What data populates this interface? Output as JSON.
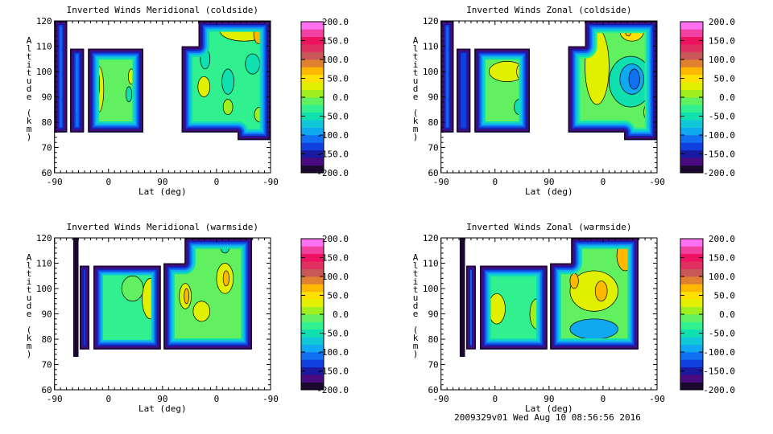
{
  "colorbar": {
    "min": -200,
    "max": 200,
    "step": 20,
    "colors": [
      "#1a0830",
      "#4a0a80",
      "#1a1aa0",
      "#1040e0",
      "#1070f0",
      "#10a8f0",
      "#10c8d8",
      "#10e0b0",
      "#30f090",
      "#60f060",
      "#a0f020",
      "#e0f000",
      "#ffe000",
      "#ffb800",
      "#e08030",
      "#c85858",
      "#e03060",
      "#f01060",
      "#f040a0",
      "#ff70f0"
    ],
    "tick_labels": [
      "200.0",
      "150.0",
      "100.0",
      "50.0",
      "0.0",
      "-50.0",
      "-100.0",
      "-150.0",
      "-200.0"
    ],
    "tick_values": [
      200,
      150,
      100,
      50,
      0,
      -50,
      -100,
      -150,
      -200
    ]
  },
  "footer": "2009329v01 Wed Aug 10 08:56:56 2016",
  "chart_data": [
    {
      "type": "heatmap",
      "title": "Inverted Winds Meridional (coldside)",
      "xlabel": "Lat (deg)",
      "ylabel": "Altitude (km)",
      "xtick_labels": [
        "-90",
        "0",
        "90",
        "0",
        "-90"
      ],
      "xtick_positions": [
        0,
        90,
        180,
        270,
        360
      ],
      "xrange": [
        0,
        360
      ],
      "ytick_labels": [
        "120",
        "110",
        "100",
        "90",
        "80",
        "70",
        "60"
      ],
      "ytick_values": [
        120,
        110,
        100,
        90,
        80,
        70,
        60
      ],
      "ylim": [
        60,
        120
      ],
      "regions": [
        {
          "value": -30,
          "outline": [
            [
              0,
              76
            ],
            [
              21,
              76
            ],
            [
              21,
              120
            ],
            [
              0,
              120
            ]
          ]
        },
        {
          "value": -80,
          "outline": [
            [
              26,
              76
            ],
            [
              49,
              76
            ],
            [
              49,
              109
            ],
            [
              26,
              109
            ]
          ]
        },
        {
          "value": -20,
          "outline": [
            [
              56,
              76
            ],
            [
              148,
              76
            ],
            [
              148,
              109
            ],
            [
              56,
              109
            ]
          ]
        },
        {
          "value": -30,
          "outline": [
            [
              212,
              76
            ],
            [
              305,
              76
            ],
            [
              305,
              73
            ],
            [
              360,
              73
            ],
            [
              360,
              120
            ],
            [
              240,
              120
            ],
            [
              240,
              110
            ],
            [
              212,
              110
            ]
          ]
        }
      ],
      "blobs": [
        {
          "u": 14,
          "alt": 98,
          "ru": 2,
          "ralt": 22,
          "value": -195
        },
        {
          "u": 37,
          "alt": 92,
          "ru": 2,
          "ralt": 10,
          "value": 10
        },
        {
          "u": 60,
          "alt": 92,
          "ru": 3,
          "ralt": 14,
          "value": -195
        },
        {
          "u": 74,
          "alt": 93,
          "ru": 8,
          "ralt": 9,
          "value": 30
        },
        {
          "u": 72,
          "alt": 95,
          "ru": 3,
          "ralt": 5,
          "value": 55
        },
        {
          "u": 128,
          "alt": 98,
          "ru": 5,
          "ralt": 3,
          "value": 20
        },
        {
          "u": 124,
          "alt": 91,
          "ru": 5,
          "ralt": 3,
          "value": -50
        },
        {
          "u": 316,
          "alt": 116,
          "ru": 40,
          "ralt": 4,
          "value": 30
        },
        {
          "u": 340,
          "alt": 115,
          "ru": 8,
          "ralt": 4,
          "value": 60
        },
        {
          "u": 251,
          "alt": 105,
          "ru": 8,
          "ralt": 4,
          "value": -60
        },
        {
          "u": 330,
          "alt": 103,
          "ru": 12,
          "ralt": 4,
          "value": -50
        },
        {
          "u": 249,
          "alt": 94,
          "ru": 10,
          "ralt": 4,
          "value": 30
        },
        {
          "u": 289,
          "alt": 96,
          "ru": 10,
          "ralt": 5,
          "value": -50
        },
        {
          "u": 218,
          "alt": 88,
          "ru": 3,
          "ralt": 5,
          "value": 80
        },
        {
          "u": 289,
          "alt": 86,
          "ru": 8,
          "ralt": 3,
          "value": 10
        },
        {
          "u": 343,
          "alt": 83,
          "ru": 10,
          "ralt": 3,
          "value": 10
        }
      ]
    },
    {
      "type": "heatmap",
      "title": "Inverted Winds Zonal (coldside)",
      "xlabel": "Lat (deg)",
      "ylabel": "Altitude (km)",
      "xtick_labels": [
        "-90",
        "0",
        "90",
        "0",
        "-90"
      ],
      "xtick_positions": [
        0,
        90,
        180,
        270,
        360
      ],
      "xrange": [
        0,
        360
      ],
      "ytick_labels": [
        "120",
        "110",
        "100",
        "90",
        "80",
        "70",
        "60"
      ],
      "ytick_values": [
        120,
        110,
        100,
        90,
        80,
        70,
        60
      ],
      "ylim": [
        60,
        120
      ],
      "regions": [
        {
          "value": -30,
          "outline": [
            [
              0,
              76
            ],
            [
              21,
              76
            ],
            [
              21,
              120
            ],
            [
              0,
              120
            ]
          ]
        },
        {
          "value": -130,
          "outline": [
            [
              26,
              76
            ],
            [
              49,
              76
            ],
            [
              49,
              109
            ],
            [
              26,
              109
            ]
          ]
        },
        {
          "value": -20,
          "outline": [
            [
              56,
              76
            ],
            [
              148,
              76
            ],
            [
              148,
              109
            ],
            [
              56,
              109
            ]
          ]
        },
        {
          "value": -10,
          "outline": [
            [
              212,
              76
            ],
            [
              305,
              76
            ],
            [
              305,
              73
            ],
            [
              360,
              73
            ],
            [
              360,
              120
            ],
            [
              240,
              120
            ],
            [
              240,
              110
            ],
            [
              212,
              110
            ]
          ]
        }
      ],
      "blobs": [
        {
          "u": 14,
          "alt": 98,
          "ru": 2,
          "ralt": 22,
          "value": -195
        },
        {
          "u": 60,
          "alt": 92,
          "ru": 3,
          "ralt": 14,
          "value": -195
        },
        {
          "u": 110,
          "alt": 100,
          "ru": 30,
          "ralt": 4,
          "value": 25
        },
        {
          "u": 133,
          "alt": 100,
          "ru": 7,
          "ralt": 3,
          "value": 55
        },
        {
          "u": 130,
          "alt": 86,
          "ru": 8,
          "ralt": 3,
          "value": -50
        },
        {
          "u": 260,
          "alt": 102,
          "ru": 20,
          "ralt": 15,
          "value": 20
        },
        {
          "u": 318,
          "alt": 116,
          "ru": 20,
          "ralt": 4,
          "value": 45
        },
        {
          "u": 312,
          "alt": 117,
          "ru": 6,
          "ralt": 3,
          "value": 70
        },
        {
          "u": 316,
          "alt": 96,
          "ru": 36,
          "ralt": 10,
          "value": -50
        },
        {
          "u": 318,
          "alt": 97,
          "ru": 20,
          "ralt": 6,
          "value": -90
        },
        {
          "u": 322,
          "alt": 97,
          "ru": 9,
          "ralt": 4,
          "value": -110
        },
        {
          "u": 348,
          "alt": 84,
          "ru": 10,
          "ralt": 4,
          "value": 25
        }
      ]
    },
    {
      "type": "heatmap",
      "title": "Inverted Winds Meridional (warmside)",
      "xlabel": "Lat (deg)",
      "ylabel": "Altitude (km)",
      "xtick_labels": [
        "-90",
        "0",
        "90",
        "0",
        "-90"
      ],
      "xtick_positions": [
        0,
        90,
        180,
        270,
        360
      ],
      "xrange": [
        0,
        360
      ],
      "ytick_labels": [
        "120",
        "110",
        "100",
        "90",
        "80",
        "70",
        "60"
      ],
      "ytick_values": [
        120,
        110,
        100,
        90,
        80,
        70,
        60
      ],
      "ylim": [
        60,
        120
      ],
      "regions": [
        {
          "value": -195,
          "outline": [
            [
              31,
              73
            ],
            [
              40,
              73
            ],
            [
              40,
              120
            ],
            [
              31,
              120
            ]
          ]
        },
        {
          "value": -80,
          "outline": [
            [
              42,
              76
            ],
            [
              58,
              76
            ],
            [
              58,
              109
            ],
            [
              42,
              109
            ]
          ]
        },
        {
          "value": -40,
          "outline": [
            [
              65,
              76
            ],
            [
              177,
              76
            ],
            [
              177,
              109
            ],
            [
              65,
              109
            ]
          ]
        },
        {
          "value": -20,
          "outline": [
            [
              182,
              76
            ],
            [
              329,
              76
            ],
            [
              329,
              120
            ],
            [
              217,
              120
            ],
            [
              217,
              110
            ],
            [
              182,
              110
            ]
          ]
        }
      ],
      "blobs": [
        {
          "u": 160,
          "alt": 96,
          "ru": 14,
          "ralt": 8,
          "value": 30
        },
        {
          "u": 130,
          "alt": 100,
          "ru": 18,
          "ralt": 5,
          "value": -10
        },
        {
          "u": 218,
          "alt": 97,
          "ru": 10,
          "ralt": 5,
          "value": 30
        },
        {
          "u": 220,
          "alt": 97,
          "ru": 4,
          "ralt": 3,
          "value": 60
        },
        {
          "u": 284,
          "alt": 104,
          "ru": 14,
          "ralt": 6,
          "value": 30
        },
        {
          "u": 286,
          "alt": 104,
          "ru": 5,
          "ralt": 3,
          "value": 70
        },
        {
          "u": 245,
          "alt": 91,
          "ru": 14,
          "ralt": 4,
          "value": 30
        },
        {
          "u": 322,
          "alt": 112,
          "ru": 6,
          "ralt": 8,
          "value": 60
        },
        {
          "u": 284,
          "alt": 117,
          "ru": 8,
          "ralt": 3,
          "value": -60
        }
      ]
    },
    {
      "type": "heatmap",
      "title": "Inverted Winds Zonal (warmside)",
      "xlabel": "Lat (deg)",
      "ylabel": "Altitude (km)",
      "xtick_labels": [
        "-90",
        "0",
        "90",
        "0",
        "-90"
      ],
      "xtick_positions": [
        0,
        90,
        180,
        270,
        360
      ],
      "xrange": [
        0,
        360
      ],
      "ytick_labels": [
        "120",
        "110",
        "100",
        "90",
        "80",
        "70",
        "60"
      ],
      "ytick_values": [
        120,
        110,
        100,
        90,
        80,
        70,
        60
      ],
      "ylim": [
        60,
        120
      ],
      "regions": [
        {
          "value": -195,
          "outline": [
            [
              31,
              73
            ],
            [
              40,
              73
            ],
            [
              40,
              120
            ],
            [
              31,
              120
            ]
          ]
        },
        {
          "value": -120,
          "outline": [
            [
              42,
              76
            ],
            [
              58,
              76
            ],
            [
              58,
              109
            ],
            [
              42,
              109
            ]
          ]
        },
        {
          "value": -30,
          "outline": [
            [
              65,
              76
            ],
            [
              177,
              76
            ],
            [
              177,
              109
            ],
            [
              65,
              109
            ]
          ]
        },
        {
          "value": -20,
          "outline": [
            [
              182,
              76
            ],
            [
              329,
              76
            ],
            [
              329,
              120
            ],
            [
              217,
              120
            ],
            [
              217,
              110
            ],
            [
              182,
              110
            ]
          ]
        }
      ],
      "blobs": [
        {
          "u": 66,
          "alt": 92,
          "ru": 3,
          "ralt": 12,
          "value": -195
        },
        {
          "u": 93,
          "alt": 92,
          "ru": 14,
          "ralt": 6,
          "value": 30
        },
        {
          "u": 160,
          "alt": 90,
          "ru": 12,
          "ralt": 6,
          "value": 0
        },
        {
          "u": 255,
          "alt": 99,
          "ru": 40,
          "ralt": 8,
          "value": 30
        },
        {
          "u": 222,
          "alt": 103,
          "ru": 7,
          "ralt": 3,
          "value": 75
        },
        {
          "u": 267,
          "alt": 99,
          "ru": 10,
          "ralt": 4,
          "value": 65
        },
        {
          "u": 307,
          "alt": 113,
          "ru": 14,
          "ralt": 6,
          "value": 60
        },
        {
          "u": 255,
          "alt": 84,
          "ru": 40,
          "ralt": 4,
          "value": -90
        },
        {
          "u": 320,
          "alt": 86,
          "ru": 6,
          "ralt": 3,
          "value": -10
        }
      ]
    }
  ]
}
